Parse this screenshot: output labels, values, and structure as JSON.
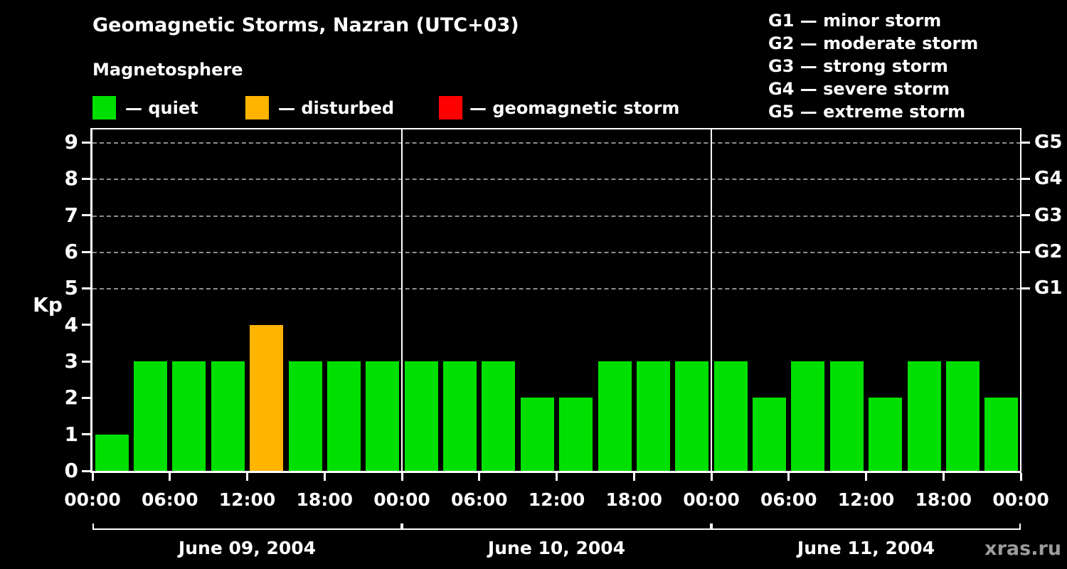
{
  "header": {
    "title": "Geomagnetic Storms, Nazran (UTC+03)",
    "subtitle": "Magnetosphere"
  },
  "legend": {
    "items": [
      {
        "name": "quiet",
        "label": "— quiet",
        "color": "#00e000"
      },
      {
        "name": "disturbed",
        "label": "— disturbed",
        "color": "#ffb400"
      },
      {
        "name": "geomagnetic-storm",
        "label": "— geomagnetic storm",
        "color": "#ff0000"
      }
    ]
  },
  "storm_scale_legend": [
    "G1 — minor storm",
    "G2 — moderate storm",
    "G3 — strong storm",
    "G4 — severe storm",
    "G5 — extreme storm"
  ],
  "chart_data": {
    "type": "bar",
    "title": "Geomagnetic Storms, Nazran (UTC+03)",
    "ylabel": "Kp",
    "ylim": [
      0,
      9
    ],
    "y_ticks": [
      0,
      1,
      2,
      3,
      4,
      5,
      6,
      7,
      8,
      9
    ],
    "bar_interval_hours": 3,
    "x_tick_labels_per_day": [
      "00:00",
      "06:00",
      "12:00",
      "18:00"
    ],
    "x_final_tick_label": "00:00",
    "right_axis": [
      {
        "kp": 9,
        "label": "G5"
      },
      {
        "kp": 8,
        "label": "G4"
      },
      {
        "kp": 7,
        "label": "G3"
      },
      {
        "kp": 6,
        "label": "G2"
      },
      {
        "kp": 5,
        "label": "G1"
      }
    ],
    "gridline_levels": [
      5,
      6,
      7,
      8,
      9
    ],
    "grid": "dashed-horizontal-at-G-levels",
    "legend_position": "top-left",
    "days": [
      {
        "date": "June 09, 2004",
        "kp_values": [
          1,
          3,
          3,
          3,
          4,
          3,
          3,
          3
        ]
      },
      {
        "date": "June 10, 2004",
        "kp_values": [
          3,
          3,
          3,
          2,
          2,
          3,
          3,
          3
        ]
      },
      {
        "date": "June 11, 2004",
        "kp_values": [
          3,
          2,
          3,
          3,
          2,
          3,
          3,
          2
        ]
      }
    ],
    "colors": {
      "quiet": "#00e000",
      "disturbed": "#ffb400",
      "storm": "#ff0000"
    },
    "color_thresholds": {
      "quiet_max_kp": 3,
      "disturbed_max_kp": 4
    }
  },
  "watermark": "xras.ru"
}
